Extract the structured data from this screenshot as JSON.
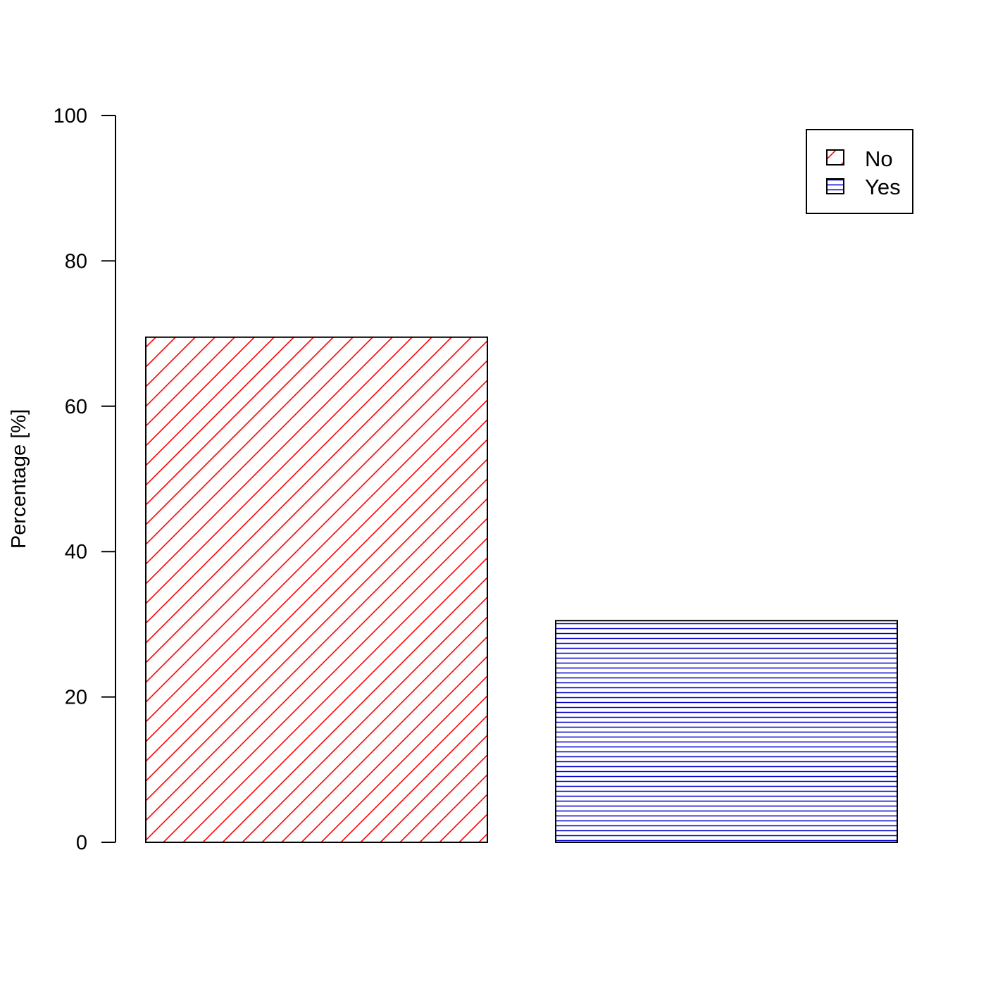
{
  "chart_data": {
    "type": "bar",
    "title": "",
    "xlabel": "",
    "ylabel": "Percentage [%]",
    "ylim": [
      0,
      100
    ],
    "yticks": [
      0,
      20,
      40,
      60,
      80,
      100
    ],
    "grid": false,
    "legend_position": "top-right",
    "categories": [
      "No",
      "Yes"
    ],
    "values": [
      69.5,
      30.5
    ],
    "series_style": [
      {
        "name": "No",
        "color": "#ff0000",
        "pattern": "diagonal-hatch"
      },
      {
        "name": "Yes",
        "color": "#0000cc",
        "pattern": "horizontal-lines"
      }
    ]
  }
}
